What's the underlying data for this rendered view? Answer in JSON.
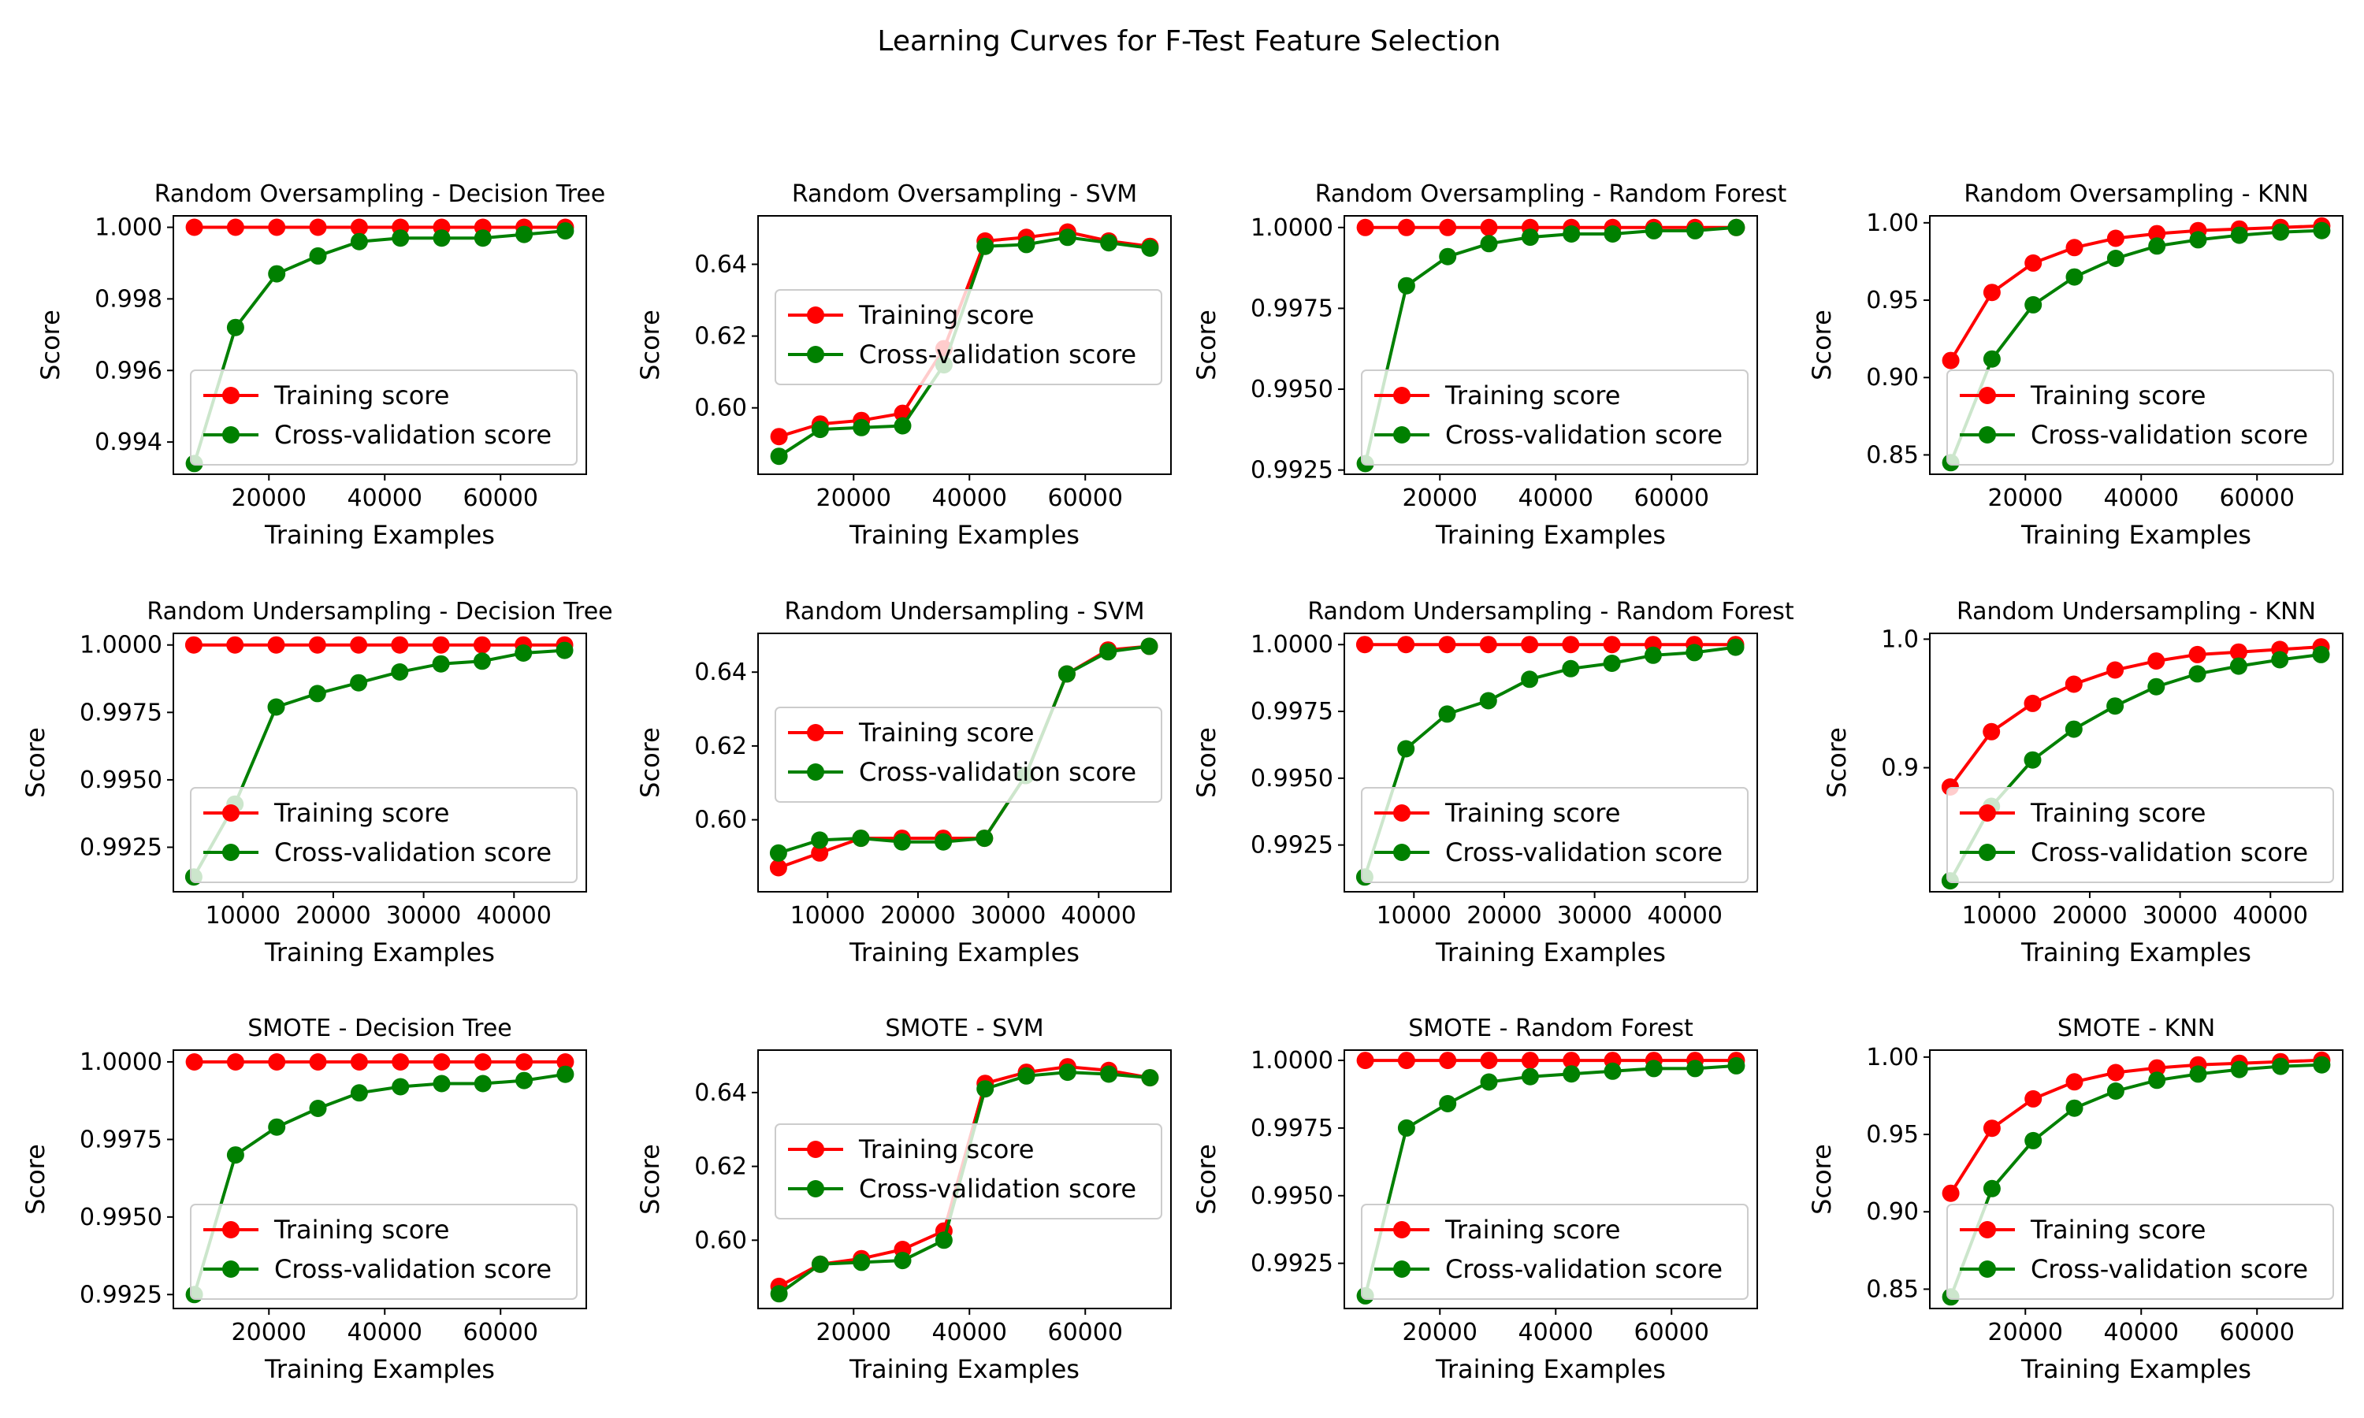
{
  "figure_title": "Learning Curves for F-Test Feature Selection",
  "colors": {
    "training": "#ff0000",
    "cv": "#008000"
  },
  "chart_data": [
    {
      "type": "line",
      "title": "Random Oversampling - Decision Tree",
      "xlabel": "Training Examples",
      "ylabel": "Score",
      "xlim": [
        3500,
        74800
      ],
      "ylim": [
        0.9931,
        1.00032
      ],
      "xticks": [
        20000,
        40000,
        60000
      ],
      "yticks": [
        0.994,
        0.996,
        0.998,
        1.0
      ],
      "legend": "lower-right",
      "x": [
        7118,
        14237,
        21355,
        28474,
        35592,
        42711,
        49829,
        56948,
        64066,
        71185
      ],
      "series": [
        {
          "name": "Training score",
          "values": [
            1.0,
            1.0,
            1.0,
            1.0,
            1.0,
            1.0,
            1.0,
            1.0,
            1.0,
            1.0
          ]
        },
        {
          "name": "Cross-validation score",
          "values": [
            0.9934,
            0.9972,
            0.9987,
            0.9992,
            0.9996,
            0.9997,
            0.9997,
            0.9997,
            0.9998,
            0.9999
          ]
        }
      ]
    },
    {
      "type": "line",
      "title": "Random Oversampling - SVM",
      "xlabel": "Training Examples",
      "ylabel": "Score",
      "xlim": [
        3500,
        74800
      ],
      "ylim": [
        0.5815,
        0.6535
      ],
      "xticks": [
        20000,
        40000,
        60000
      ],
      "yticks": [
        0.6,
        0.62,
        0.64
      ],
      "legend": "center-right",
      "x": [
        7118,
        14237,
        21355,
        28474,
        35592,
        42711,
        49829,
        56948,
        64066,
        71185
      ],
      "series": [
        {
          "name": "Training score",
          "values": [
            0.592,
            0.5955,
            0.5965,
            0.5985,
            0.6165,
            0.6465,
            0.6475,
            0.649,
            0.6465,
            0.645
          ]
        },
        {
          "name": "Cross-validation score",
          "values": [
            0.5865,
            0.594,
            0.5945,
            0.595,
            0.612,
            0.645,
            0.6455,
            0.6475,
            0.646,
            0.6445
          ]
        }
      ]
    },
    {
      "type": "line",
      "title": "Random Oversampling - Random Forest",
      "xlabel": "Training Examples",
      "ylabel": "Score",
      "xlim": [
        3500,
        74800
      ],
      "ylim": [
        0.99237,
        1.00036
      ],
      "xticks": [
        20000,
        40000,
        60000
      ],
      "yticks": [
        0.9925,
        0.995,
        0.9975,
        1.0
      ],
      "legend": "lower-right",
      "x": [
        7118,
        14237,
        21355,
        28474,
        35592,
        42711,
        49829,
        56948,
        64066,
        71185
      ],
      "series": [
        {
          "name": "Training score",
          "values": [
            1.0,
            1.0,
            1.0,
            1.0,
            1.0,
            1.0,
            1.0,
            1.0,
            1.0,
            1.0
          ]
        },
        {
          "name": "Cross-validation score",
          "values": [
            0.9927,
            0.9982,
            0.9991,
            0.9995,
            0.9997,
            0.9998,
            0.9998,
            0.9999,
            0.9999,
            1.0
          ]
        }
      ]
    },
    {
      "type": "line",
      "title": "Random Oversampling - KNN",
      "xlabel": "Training Examples",
      "ylabel": "Score",
      "xlim": [
        3500,
        74800
      ],
      "ylim": [
        0.8375,
        1.0045
      ],
      "xticks": [
        20000,
        40000,
        60000
      ],
      "yticks": [
        0.85,
        0.9,
        0.95,
        1.0
      ],
      "legend": "lower-right",
      "x": [
        7118,
        14237,
        21355,
        28474,
        35592,
        42711,
        49829,
        56948,
        64066,
        71185
      ],
      "series": [
        {
          "name": "Training score",
          "values": [
            0.911,
            0.955,
            0.974,
            0.984,
            0.99,
            0.993,
            0.995,
            0.996,
            0.997,
            0.998
          ]
        },
        {
          "name": "Cross-validation score",
          "values": [
            0.845,
            0.912,
            0.947,
            0.965,
            0.977,
            0.985,
            0.989,
            0.992,
            0.994,
            0.995
          ]
        }
      ]
    },
    {
      "type": "line",
      "title": "Random Undersampling - Decision Tree",
      "xlabel": "Training Examples",
      "ylabel": "Score",
      "xlim": [
        2300,
        48000
      ],
      "ylim": [
        0.99085,
        1.00043
      ],
      "xticks": [
        10000,
        20000,
        30000,
        40000
      ],
      "yticks": [
        0.9925,
        0.995,
        0.9975,
        1.0
      ],
      "legend": "lower-right",
      "x": [
        4560,
        9120,
        13680,
        18240,
        22800,
        27360,
        31920,
        36480,
        41040,
        45600
      ],
      "series": [
        {
          "name": "Training score",
          "values": [
            1.0,
            1.0,
            1.0,
            1.0,
            1.0,
            1.0,
            1.0,
            1.0,
            1.0,
            1.0
          ]
        },
        {
          "name": "Cross-validation score",
          "values": [
            0.9914,
            0.9941,
            0.9977,
            0.9982,
            0.9986,
            0.999,
            0.9993,
            0.9994,
            0.9997,
            0.9998
          ]
        }
      ]
    },
    {
      "type": "line",
      "title": "Random Undersampling - SVM",
      "xlabel": "Training Examples",
      "ylabel": "Score",
      "xlim": [
        2300,
        48000
      ],
      "ylim": [
        0.5805,
        0.6505
      ],
      "xticks": [
        10000,
        20000,
        30000,
        40000
      ],
      "yticks": [
        0.6,
        0.62,
        0.64
      ],
      "legend": "center-right",
      "x": [
        4560,
        9120,
        13680,
        18240,
        22800,
        27360,
        31920,
        36480,
        41040,
        45600
      ],
      "series": [
        {
          "name": "Training score",
          "values": [
            0.587,
            0.591,
            0.595,
            0.595,
            0.595,
            0.595,
            0.612,
            0.6395,
            0.646,
            0.647
          ]
        },
        {
          "name": "Cross-validation score",
          "values": [
            0.591,
            0.5945,
            0.595,
            0.594,
            0.594,
            0.595,
            0.612,
            0.6395,
            0.6455,
            0.647
          ]
        }
      ]
    },
    {
      "type": "line",
      "title": "Random Undersampling - Random Forest",
      "xlabel": "Training Examples",
      "ylabel": "Score",
      "xlim": [
        2300,
        48000
      ],
      "ylim": [
        0.99075,
        1.00042
      ],
      "xticks": [
        10000,
        20000,
        30000,
        40000
      ],
      "yticks": [
        0.9925,
        0.995,
        0.9975,
        1.0
      ],
      "legend": "lower-right",
      "x": [
        4560,
        9120,
        13680,
        18240,
        22800,
        27360,
        31920,
        36480,
        41040,
        45600
      ],
      "series": [
        {
          "name": "Training score",
          "values": [
            1.0,
            1.0,
            1.0,
            1.0,
            1.0,
            1.0,
            1.0,
            1.0,
            1.0,
            1.0
          ]
        },
        {
          "name": "Cross-validation score",
          "values": [
            0.9913,
            0.9961,
            0.9974,
            0.9979,
            0.9987,
            0.9991,
            0.9993,
            0.9996,
            0.9997,
            0.9999
          ]
        }
      ]
    },
    {
      "type": "line",
      "title": "Random Undersampling - KNN",
      "xlabel": "Training Examples",
      "ylabel": "Score",
      "xlim": [
        2300,
        48000
      ],
      "ylim": [
        0.8035,
        1.0045
      ],
      "xticks": [
        10000,
        20000,
        30000,
        40000
      ],
      "yticks": [
        0.9,
        1.0
      ],
      "legend": "lower-right",
      "x": [
        4560,
        9120,
        13680,
        18240,
        22800,
        27360,
        31920,
        36480,
        41040,
        45600
      ],
      "series": [
        {
          "name": "Training score",
          "values": [
            0.885,
            0.928,
            0.95,
            0.965,
            0.976,
            0.983,
            0.988,
            0.99,
            0.992,
            0.994
          ]
        },
        {
          "name": "Cross-validation score",
          "values": [
            0.812,
            0.87,
            0.906,
            0.93,
            0.948,
            0.963,
            0.973,
            0.979,
            0.984,
            0.988
          ]
        }
      ]
    },
    {
      "type": "line",
      "title": "SMOTE - Decision Tree",
      "xlabel": "Training Examples",
      "ylabel": "Score",
      "xlim": [
        3500,
        74800
      ],
      "ylim": [
        0.99205,
        1.00038
      ],
      "xticks": [
        20000,
        40000,
        60000
      ],
      "yticks": [
        0.9925,
        0.995,
        0.9975,
        1.0
      ],
      "legend": "lower-right",
      "x": [
        7118,
        14237,
        21355,
        28474,
        35592,
        42711,
        49829,
        56948,
        64066,
        71185
      ],
      "series": [
        {
          "name": "Training score",
          "values": [
            1.0,
            1.0,
            1.0,
            1.0,
            1.0,
            1.0,
            1.0,
            1.0,
            1.0,
            1.0
          ]
        },
        {
          "name": "Cross-validation score",
          "values": [
            0.9925,
            0.997,
            0.9979,
            0.9985,
            0.999,
            0.9992,
            0.9993,
            0.9993,
            0.9994,
            0.9996
          ]
        }
      ]
    },
    {
      "type": "line",
      "title": "SMOTE - SVM",
      "xlabel": "Training Examples",
      "ylabel": "Score",
      "xlim": [
        3500,
        74800
      ],
      "ylim": [
        0.5815,
        0.6515
      ],
      "xticks": [
        20000,
        40000,
        60000
      ],
      "yticks": [
        0.6,
        0.62,
        0.64
      ],
      "legend": "center-right",
      "x": [
        7118,
        14237,
        21355,
        28474,
        35592,
        42711,
        49829,
        56948,
        64066,
        71185
      ],
      "series": [
        {
          "name": "Training score",
          "values": [
            0.5875,
            0.5935,
            0.595,
            0.5975,
            0.6025,
            0.6425,
            0.6455,
            0.647,
            0.646,
            0.644
          ]
        },
        {
          "name": "Cross-validation score",
          "values": [
            0.5855,
            0.5935,
            0.594,
            0.5945,
            0.6,
            0.641,
            0.6445,
            0.6455,
            0.645,
            0.644
          ]
        }
      ]
    },
    {
      "type": "line",
      "title": "SMOTE - Random Forest",
      "xlabel": "Training Examples",
      "ylabel": "Score",
      "xlim": [
        3500,
        74800
      ],
      "ylim": [
        0.99083,
        1.00038
      ],
      "xticks": [
        20000,
        40000,
        60000
      ],
      "yticks": [
        0.9925,
        0.995,
        0.9975,
        1.0
      ],
      "legend": "lower-right",
      "x": [
        7118,
        14237,
        21355,
        28474,
        35592,
        42711,
        49829,
        56948,
        64066,
        71185
      ],
      "series": [
        {
          "name": "Training score",
          "values": [
            1.0,
            1.0,
            1.0,
            1.0,
            1.0,
            1.0,
            1.0,
            1.0,
            1.0,
            1.0
          ]
        },
        {
          "name": "Cross-validation score",
          "values": [
            0.9913,
            0.9975,
            0.9984,
            0.9992,
            0.9994,
            0.9995,
            0.9996,
            0.9997,
            0.9997,
            0.9998
          ]
        }
      ]
    },
    {
      "type": "line",
      "title": "SMOTE - KNN",
      "xlabel": "Training Examples",
      "ylabel": "Score",
      "xlim": [
        3500,
        74800
      ],
      "ylim": [
        0.8375,
        1.0045
      ],
      "xticks": [
        20000,
        40000,
        60000
      ],
      "yticks": [
        0.85,
        0.9,
        0.95,
        1.0
      ],
      "legend": "lower-right",
      "x": [
        7118,
        14237,
        21355,
        28474,
        35592,
        42711,
        49829,
        56948,
        64066,
        71185
      ],
      "series": [
        {
          "name": "Training score",
          "values": [
            0.912,
            0.954,
            0.973,
            0.984,
            0.99,
            0.993,
            0.995,
            0.996,
            0.997,
            0.998
          ]
        },
        {
          "name": "Cross-validation score",
          "values": [
            0.845,
            0.915,
            0.946,
            0.967,
            0.978,
            0.985,
            0.989,
            0.992,
            0.994,
            0.995
          ]
        }
      ]
    }
  ]
}
